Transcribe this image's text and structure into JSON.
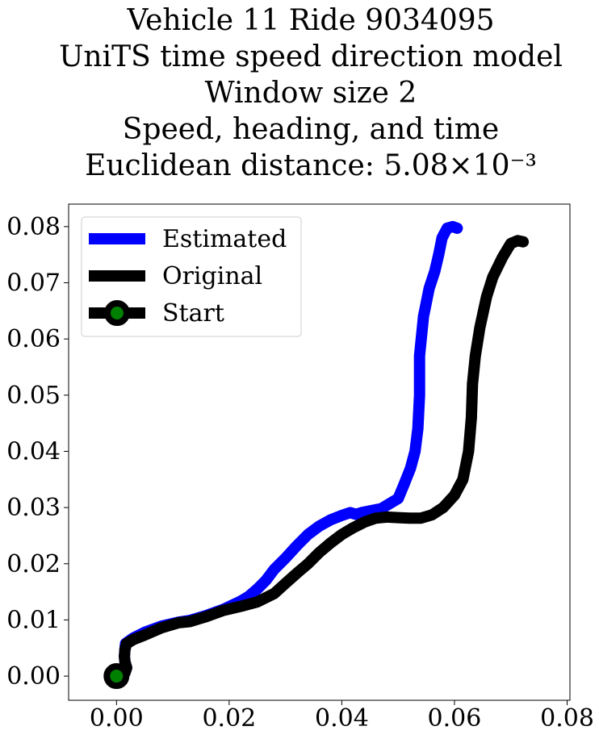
{
  "chart_data": {
    "type": "line",
    "title_lines": [
      "Vehicle 11 Ride 9034095",
      "UniTS time speed direction model",
      "Window size 2",
      "Speed, heading, and time",
      "Euclidean distance: 5.08×10⁻³"
    ],
    "xlabel": "",
    "ylabel": "",
    "xlim": [
      -0.0085,
      0.0805
    ],
    "ylim": [
      -0.0043,
      0.084
    ],
    "xticks": [
      0.0,
      0.02,
      0.04,
      0.06,
      0.08
    ],
    "xtick_labels": [
      "0.00",
      "0.02",
      "0.04",
      "0.06",
      "0.08"
    ],
    "yticks": [
      0.0,
      0.01,
      0.02,
      0.03,
      0.04,
      0.05,
      0.06,
      0.07,
      0.08
    ],
    "ytick_labels": [
      "0.00",
      "0.01",
      "0.02",
      "0.03",
      "0.04",
      "0.05",
      "0.06",
      "0.07",
      "0.08"
    ],
    "grid": false,
    "legend_position": "top-left",
    "series": [
      {
        "name": "Estimated",
        "color": "#0000ff",
        "points": [
          [
            0.0,
            0.0
          ],
          [
            0.0015,
            0.0006
          ],
          [
            0.0018,
            0.0015
          ],
          [
            0.0015,
            0.0025
          ],
          [
            0.0014,
            0.0035
          ],
          [
            0.0015,
            0.0048
          ],
          [
            0.0016,
            0.0058
          ],
          [
            0.003,
            0.0068
          ],
          [
            0.005,
            0.0078
          ],
          [
            0.008,
            0.0089
          ],
          [
            0.011,
            0.0096
          ],
          [
            0.013,
            0.0099
          ],
          [
            0.016,
            0.0108
          ],
          [
            0.019,
            0.0119
          ],
          [
            0.022,
            0.0133
          ],
          [
            0.0235,
            0.0142
          ],
          [
            0.025,
            0.0155
          ],
          [
            0.0265,
            0.017
          ],
          [
            0.028,
            0.019
          ],
          [
            0.03,
            0.021
          ],
          [
            0.032,
            0.0232
          ],
          [
            0.034,
            0.0252
          ],
          [
            0.036,
            0.0267
          ],
          [
            0.038,
            0.0278
          ],
          [
            0.04,
            0.0286
          ],
          [
            0.0415,
            0.0291
          ],
          [
            0.0425,
            0.0288
          ],
          [
            0.0435,
            0.0291
          ],
          [
            0.045,
            0.0294
          ],
          [
            0.047,
            0.0298
          ],
          [
            0.049,
            0.031
          ],
          [
            0.05,
            0.0316
          ],
          [
            0.051,
            0.034
          ],
          [
            0.0522,
            0.037
          ],
          [
            0.053,
            0.04
          ],
          [
            0.0535,
            0.044
          ],
          [
            0.0538,
            0.05
          ],
          [
            0.0538,
            0.057
          ],
          [
            0.0545,
            0.064
          ],
          [
            0.0555,
            0.069
          ],
          [
            0.0565,
            0.072
          ],
          [
            0.0572,
            0.075
          ],
          [
            0.0578,
            0.078
          ],
          [
            0.0587,
            0.0797
          ],
          [
            0.0597,
            0.08
          ],
          [
            0.0605,
            0.0797
          ]
        ]
      },
      {
        "name": "Original",
        "color": "#000000",
        "points": [
          [
            0.0,
            0.0
          ],
          [
            0.0015,
            0.0006
          ],
          [
            0.0018,
            0.0015
          ],
          [
            0.0015,
            0.0025
          ],
          [
            0.0014,
            0.0035
          ],
          [
            0.0015,
            0.0048
          ],
          [
            0.0018,
            0.0058
          ],
          [
            0.003,
            0.0065
          ],
          [
            0.005,
            0.0073
          ],
          [
            0.008,
            0.0086
          ],
          [
            0.011,
            0.0095
          ],
          [
            0.013,
            0.0097
          ],
          [
            0.016,
            0.0106
          ],
          [
            0.019,
            0.0117
          ],
          [
            0.022,
            0.0124
          ],
          [
            0.025,
            0.0132
          ],
          [
            0.028,
            0.0147
          ],
          [
            0.03,
            0.0165
          ],
          [
            0.032,
            0.0183
          ],
          [
            0.034,
            0.02
          ],
          [
            0.036,
            0.022
          ],
          [
            0.038,
            0.0237
          ],
          [
            0.04,
            0.0252
          ],
          [
            0.042,
            0.0264
          ],
          [
            0.044,
            0.0274
          ],
          [
            0.046,
            0.0281
          ],
          [
            0.048,
            0.0283
          ],
          [
            0.05,
            0.0282
          ],
          [
            0.052,
            0.0281
          ],
          [
            0.054,
            0.0281
          ],
          [
            0.056,
            0.0287
          ],
          [
            0.058,
            0.03
          ],
          [
            0.06,
            0.0322
          ],
          [
            0.0615,
            0.035
          ],
          [
            0.0625,
            0.04
          ],
          [
            0.063,
            0.046
          ],
          [
            0.0632,
            0.052
          ],
          [
            0.0637,
            0.057
          ],
          [
            0.0645,
            0.062
          ],
          [
            0.0657,
            0.0675
          ],
          [
            0.0668,
            0.071
          ],
          [
            0.0685,
            0.0745
          ],
          [
            0.07,
            0.077
          ],
          [
            0.0712,
            0.0775
          ],
          [
            0.0722,
            0.0773
          ]
        ]
      }
    ],
    "start_point": {
      "name": "Start",
      "x": 0.0,
      "y": 0.0,
      "edge_color": "#000000",
      "face_color": "#008000"
    }
  }
}
